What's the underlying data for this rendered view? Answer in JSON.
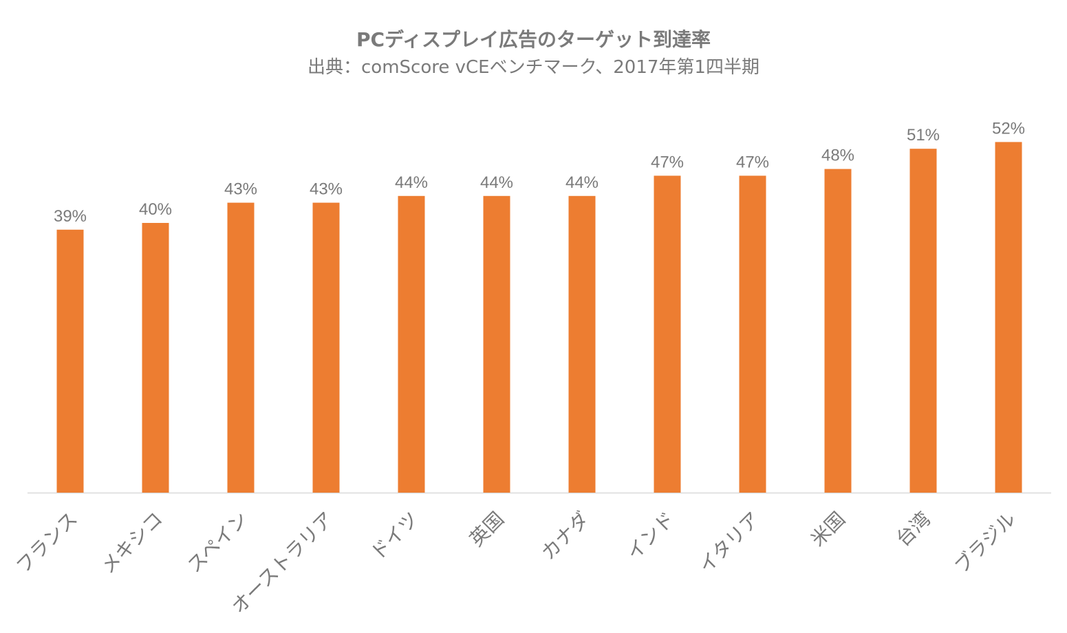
{
  "chart_data": {
    "type": "bar",
    "title": "PCディスプレイ広告のターゲット到達率",
    "subtitle": "出典：comScore vCEベンチマーク、2017年第1四半期",
    "categories": [
      "フランス",
      "メキシコ",
      "スペイン",
      "オーストラリア",
      "ドイツ",
      "英国",
      "カナダ",
      "インド",
      "イタリア",
      "米国",
      "台湾",
      "ブラジル"
    ],
    "values": [
      39,
      40,
      43,
      43,
      44,
      44,
      44,
      47,
      47,
      48,
      51,
      52
    ],
    "data_labels": [
      "39%",
      "40%",
      "43%",
      "43%",
      "44%",
      "44%",
      "44%",
      "47%",
      "47%",
      "48%",
      "51%",
      "52%"
    ],
    "ylim": [
      0,
      55
    ],
    "grid": false,
    "legend": "none",
    "colors": {
      "bar": "#ED7D31",
      "text": "#7a7a7a",
      "axis": "#d9d9d9"
    }
  }
}
